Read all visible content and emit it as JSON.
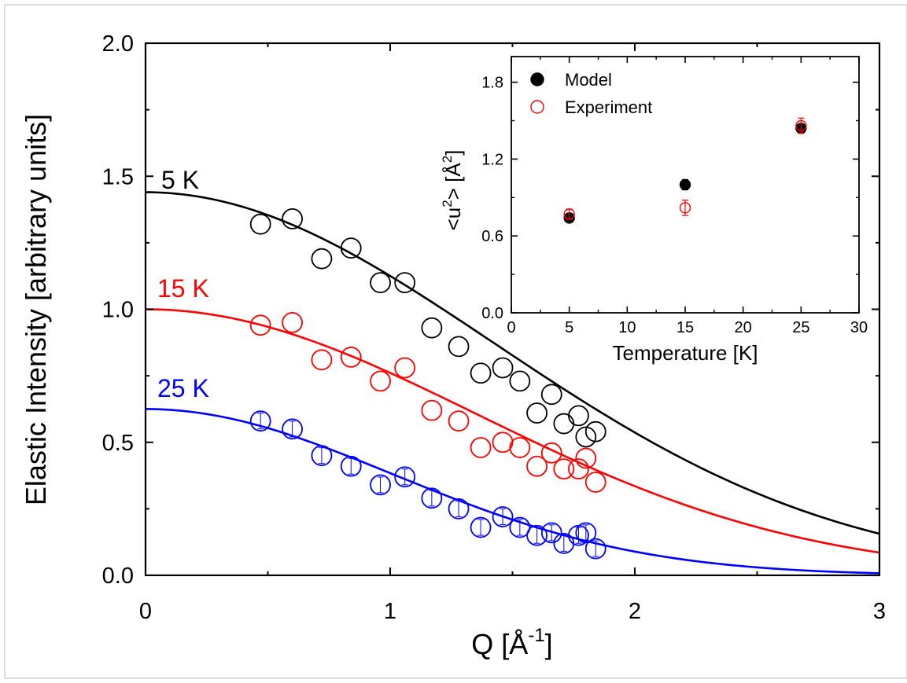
{
  "chart_data": [
    {
      "type": "scatter",
      "title": "",
      "xlabel": "Q [Å-1]",
      "xlabel_base": "Q [Å",
      "xlabel_sup": "-1",
      "xlabel_end": "]",
      "ylabel": "Elastic Intensity [arbitrary units]",
      "xlim": [
        0,
        3
      ],
      "ylim": [
        0,
        2.0
      ],
      "x_ticks": [
        "0",
        "1",
        "2",
        "3"
      ],
      "y_ticks": [
        "0.0",
        "0.5",
        "1.0",
        "1.5",
        "2.0"
      ],
      "grid": false,
      "series": [
        {
          "name": "5 K",
          "color": "#000000",
          "fit": {
            "amplitude": 1.44,
            "msd": 0.74
          },
          "x": [
            0.47,
            0.6,
            0.72,
            0.84,
            0.96,
            1.06,
            1.17,
            1.28,
            1.37,
            1.46,
            1.53,
            1.6,
            1.66,
            1.71,
            1.77,
            1.8,
            1.84
          ],
          "y": [
            1.32,
            1.34,
            1.19,
            1.23,
            1.1,
            1.1,
            0.93,
            0.86,
            0.76,
            0.78,
            0.73,
            0.61,
            0.68,
            0.57,
            0.6,
            0.52,
            0.54
          ]
        },
        {
          "name": "15 K",
          "color": "#ff0000",
          "fit": {
            "amplitude": 1.0,
            "msd": 0.82
          },
          "x": [
            0.47,
            0.6,
            0.72,
            0.84,
            0.96,
            1.06,
            1.17,
            1.28,
            1.37,
            1.46,
            1.53,
            1.6,
            1.66,
            1.71,
            1.77,
            1.8,
            1.84
          ],
          "y": [
            0.94,
            0.95,
            0.81,
            0.82,
            0.73,
            0.78,
            0.62,
            0.58,
            0.48,
            0.5,
            0.48,
            0.41,
            0.46,
            0.4,
            0.4,
            0.44,
            0.35
          ]
        },
        {
          "name": "25 K",
          "color": "#0000ff",
          "fit": {
            "amplitude": 0.625,
            "msd": 1.46
          },
          "x": [
            0.47,
            0.6,
            0.72,
            0.84,
            0.96,
            1.06,
            1.17,
            1.28,
            1.37,
            1.46,
            1.53,
            1.6,
            1.66,
            1.71,
            1.77,
            1.8,
            1.84
          ],
          "y": [
            0.58,
            0.55,
            0.45,
            0.41,
            0.34,
            0.37,
            0.29,
            0.25,
            0.18,
            0.22,
            0.18,
            0.15,
            0.16,
            0.12,
            0.15,
            0.16,
            0.1
          ]
        }
      ]
    },
    {
      "type": "scatter",
      "title": "",
      "xlabel": "Temperature [K]",
      "ylabel": "<u2> [Å2]",
      "ylabel_base": "<u",
      "ylabel_sup1": "2",
      "ylabel_mid": "> [Å",
      "ylabel_sup2": "2",
      "ylabel_end": "]",
      "xlim": [
        0,
        30
      ],
      "ylim": [
        0,
        2.0
      ],
      "x_ticks": [
        "0",
        "5",
        "10",
        "15",
        "20",
        "25",
        "30"
      ],
      "y_ticks": [
        "0.0",
        "0.6",
        "1.2",
        "1.8"
      ],
      "legend_position": "top-left",
      "grid": false,
      "series": [
        {
          "name": "Model",
          "color": "#000000",
          "marker": "filled-circle",
          "x": [
            5,
            15,
            25
          ],
          "y": [
            0.74,
            1.0,
            1.44
          ],
          "err": [
            0.02,
            0.04,
            0.02
          ]
        },
        {
          "name": "Experiment",
          "color": "#ff0000",
          "marker": "open-circle",
          "x": [
            5,
            15,
            25
          ],
          "y": [
            0.77,
            0.82,
            1.46
          ],
          "err": [
            0.04,
            0.06,
            0.06
          ]
        }
      ]
    }
  ]
}
